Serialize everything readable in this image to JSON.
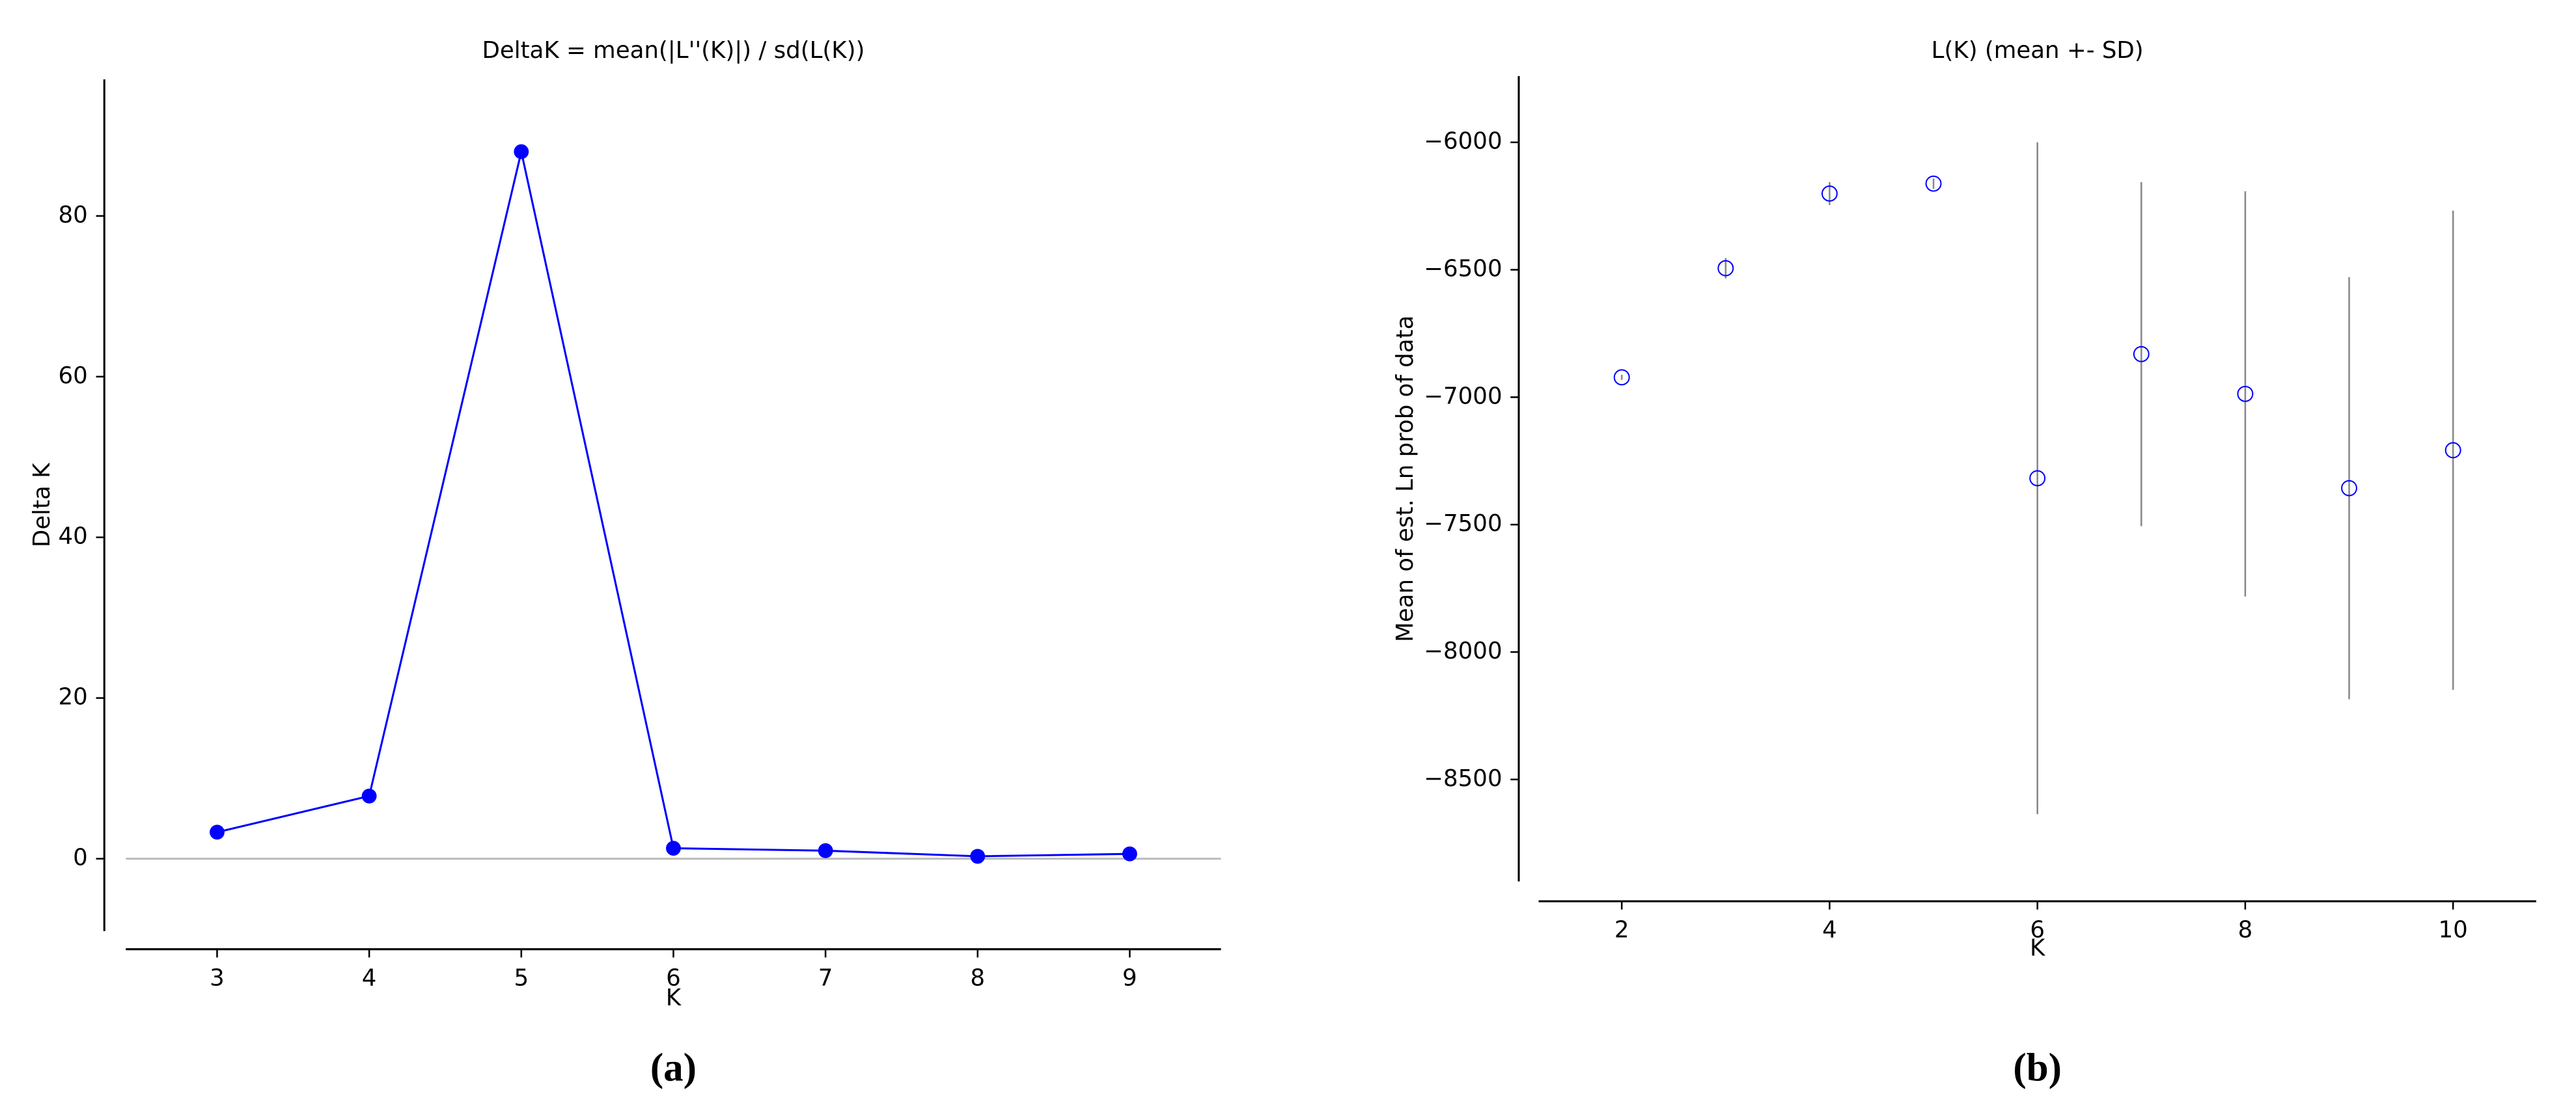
{
  "chart_data": [
    {
      "type": "line",
      "title": "DeltaK = mean(|L''(K)|) / sd(L(K))",
      "xlabel": "K",
      "ylabel": "Delta K",
      "label": "(a)",
      "x": [
        3,
        4,
        5,
        6,
        7,
        8,
        9
      ],
      "values": [
        3.3,
        7.8,
        88,
        1.3,
        1.0,
        0.3,
        0.6
      ],
      "color": "#0000ff",
      "xlim": [
        2.4,
        9.6
      ],
      "xticks": [
        3,
        4,
        5,
        6,
        7,
        8,
        9
      ],
      "ylim": [
        -9,
        97
      ],
      "yticks": [
        0,
        20,
        40,
        60,
        80
      ],
      "reference_line": 0
    },
    {
      "type": "scatter",
      "title": "L(K) (mean +- SD)",
      "xlabel": "K",
      "ylabel": "Mean of est. Ln prob of data",
      "label": "(b)",
      "x": [
        2,
        3,
        4,
        5,
        6,
        7,
        8,
        9,
        10
      ],
      "values": [
        -6922,
        -6494,
        -6201,
        -6162,
        -7318,
        -6831,
        -6987,
        -7357,
        -7208
      ],
      "errors": [
        10,
        40,
        45,
        20,
        1318,
        675,
        795,
        828,
        940
      ],
      "color": "#0000ff",
      "error_color": "#888888",
      "xlim": [
        1.2,
        10.8
      ],
      "xticks": [
        2,
        4,
        6,
        8,
        10
      ],
      "ylim": [
        -8900,
        -5740
      ],
      "yticks": [
        {
          "value": -6000,
          "label": "−6000"
        },
        {
          "value": -6500,
          "label": "−6500"
        },
        {
          "value": -7000,
          "label": "−7000"
        },
        {
          "value": -7500,
          "label": "−7500"
        },
        {
          "value": -8000,
          "label": "−8000"
        },
        {
          "value": -8500,
          "label": "−8500"
        }
      ]
    }
  ]
}
